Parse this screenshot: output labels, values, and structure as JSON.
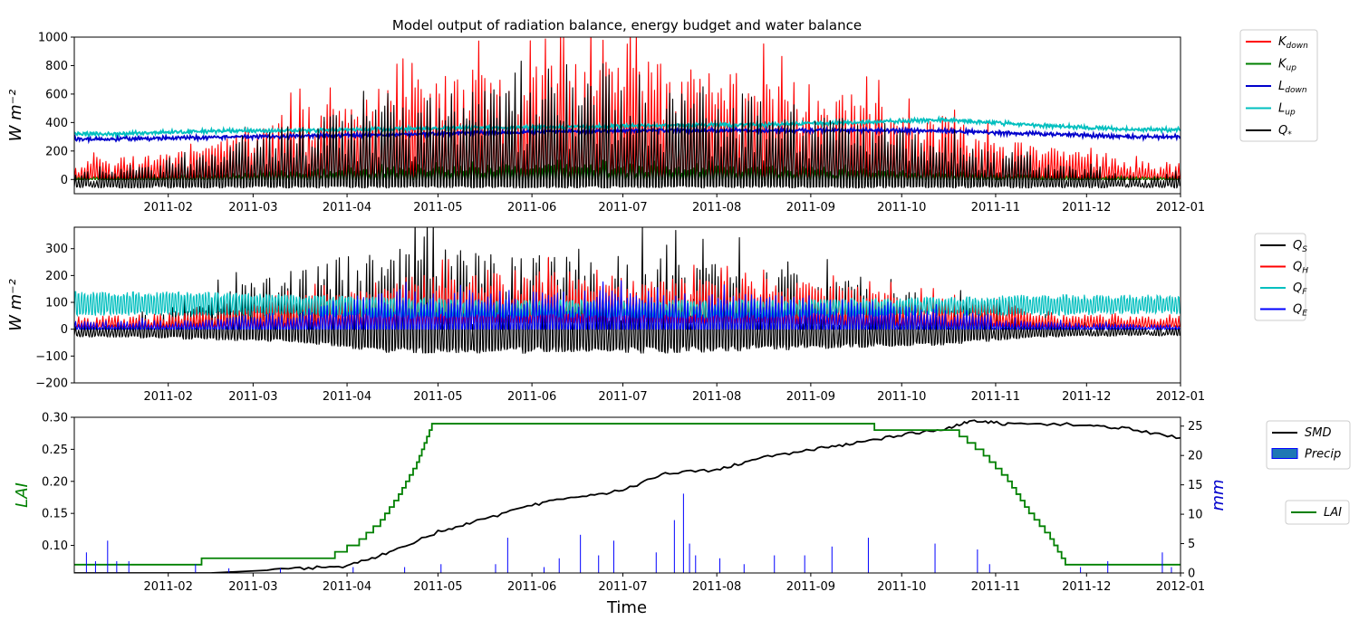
{
  "figure": {
    "title": "Model output of radiation balance, energy budget and water balance"
  },
  "chart_data": [
    {
      "type": "line",
      "id": "radiation",
      "title": "Model output of radiation balance, energy budget and water balance",
      "ylabel": "W m⁻²",
      "xlabel": "",
      "xlim": [
        "2011-01-01",
        "2012-01-01"
      ],
      "ylim": [
        -100,
        1000
      ],
      "yticks": [
        0,
        200,
        400,
        600,
        800,
        1000
      ],
      "ytick_labels": [
        "0",
        "200",
        "400",
        "600",
        "800",
        "1000"
      ],
      "xtick_labels": [
        "2011-02",
        "2011-03",
        "2011-04",
        "2011-05",
        "2011-06",
        "2011-07",
        "2011-08",
        "2011-09",
        "2011-10",
        "2011-11",
        "2011-12",
        "2012-01"
      ],
      "legend_position": "outside-right",
      "months": [
        "2011-01",
        "2011-02",
        "2011-03",
        "2011-04",
        "2011-05",
        "2011-06",
        "2011-07",
        "2011-08",
        "2011-09",
        "2011-10",
        "2011-11",
        "2011-12"
      ],
      "series": [
        {
          "name": "K_down",
          "label": "K",
          "sub": "down",
          "color": "#ff0000",
          "style": "diurnal",
          "monthly_peak": [
            150,
            240,
            500,
            680,
            780,
            850,
            820,
            770,
            600,
            450,
            240,
            130
          ],
          "monthly_min": [
            0,
            0,
            0,
            0,
            0,
            0,
            0,
            0,
            0,
            0,
            0,
            0
          ]
        },
        {
          "name": "K_up",
          "label": "K",
          "sub": "up",
          "color": "#008000",
          "style": "diurnal",
          "monthly_peak": [
            20,
            35,
            70,
            90,
            100,
            110,
            105,
            100,
            80,
            60,
            30,
            20
          ],
          "monthly_min": [
            0,
            0,
            0,
            0,
            0,
            0,
            0,
            0,
            0,
            0,
            0,
            0
          ]
        },
        {
          "name": "L_down",
          "label": "L",
          "sub": "down",
          "color": "#0000cc",
          "style": "smooth",
          "monthly_mean": [
            285,
            295,
            305,
            315,
            330,
            340,
            345,
            345,
            345,
            340,
            320,
            300
          ]
        },
        {
          "name": "L_up",
          "label": "L",
          "sub": "up",
          "color": "#00bfbf",
          "style": "smooth",
          "monthly_mean": [
            320,
            340,
            345,
            355,
            365,
            370,
            380,
            385,
            400,
            420,
            380,
            350
          ]
        },
        {
          "name": "Q*",
          "label": "Q",
          "sub": "*",
          "color": "#000000",
          "style": "diurnal",
          "monthly_peak": [
            60,
            200,
            400,
            560,
            650,
            680,
            640,
            580,
            420,
            300,
            130,
            40
          ],
          "monthly_min": [
            -60,
            -60,
            -60,
            -60,
            -60,
            -60,
            -60,
            -60,
            -60,
            -60,
            -60,
            -60
          ]
        }
      ]
    },
    {
      "type": "line",
      "id": "energy",
      "ylabel": "W m⁻²",
      "xlabel": "",
      "xlim": [
        "2011-01-01",
        "2012-01-01"
      ],
      "ylim": [
        -200,
        380
      ],
      "yticks": [
        -200,
        -100,
        0,
        100,
        200,
        300
      ],
      "ytick_labels": [
        "−200",
        "−100",
        "0",
        "100",
        "200",
        "300"
      ],
      "xtick_labels": [
        "2011-02",
        "2011-03",
        "2011-04",
        "2011-05",
        "2011-06",
        "2011-07",
        "2011-08",
        "2011-09",
        "2011-10",
        "2011-11",
        "2011-12",
        "2012-01"
      ],
      "legend_position": "outside-right",
      "series": [
        {
          "name": "Q_S",
          "label": "Q",
          "sub": "S",
          "color": "#000000",
          "style": "diurnal",
          "monthly_peak": [
            20,
            130,
            230,
            310,
            300,
            300,
            280,
            250,
            180,
            130,
            40,
            15
          ],
          "monthly_min": [
            -30,
            -40,
            -50,
            -90,
            -90,
            -90,
            -90,
            -80,
            -70,
            -60,
            -30,
            -25
          ]
        },
        {
          "name": "Q_H",
          "label": "Q",
          "sub": "H",
          "color": "#ff0000",
          "style": "diurnal",
          "monthly_peak": [
            50,
            70,
            120,
            200,
            220,
            220,
            200,
            190,
            160,
            120,
            70,
            50
          ],
          "monthly_min": [
            10,
            10,
            10,
            20,
            30,
            30,
            30,
            30,
            20,
            15,
            10,
            10
          ]
        },
        {
          "name": "Q_F",
          "label": "Q",
          "sub": "F",
          "color": "#00bfbf",
          "style": "band",
          "monthly_peak": [
            140,
            140,
            130,
            120,
            110,
            110,
            110,
            110,
            115,
            120,
            130,
            130
          ],
          "monthly_min": [
            50,
            50,
            50,
            40,
            40,
            40,
            40,
            40,
            45,
            50,
            50,
            55
          ]
        },
        {
          "name": "Q_E",
          "label": "Q",
          "sub": "E",
          "color": "#0000ff",
          "style": "diurnal",
          "monthly_peak": [
            30,
            40,
            70,
            150,
            150,
            150,
            140,
            130,
            110,
            80,
            30,
            20
          ],
          "monthly_min": [
            0,
            0,
            0,
            0,
            0,
            0,
            0,
            0,
            0,
            0,
            0,
            0
          ]
        }
      ]
    },
    {
      "type": "line",
      "id": "water",
      "ylabel": "LAI",
      "ylabel_right": "mm",
      "xlabel": "Time",
      "xlim": [
        "2011-01-01",
        "2012-01-01"
      ],
      "ylim": [
        0.057,
        0.3
      ],
      "yticks": [
        0.1,
        0.15,
        0.2,
        0.25,
        0.3
      ],
      "ytick_labels": [
        "0.10",
        "0.15",
        "0.20",
        "0.25",
        "0.30"
      ],
      "ylim_right": [
        0,
        26.5
      ],
      "yticks_right": [
        0,
        5,
        10,
        15,
        20,
        25
      ],
      "ytick_labels_right": [
        "0",
        "5",
        "10",
        "15",
        "20",
        "25"
      ],
      "xtick_labels": [
        "2011-02",
        "2011-03",
        "2011-04",
        "2011-05",
        "2011-06",
        "2011-07",
        "2011-08",
        "2011-09",
        "2011-10",
        "2011-11",
        "2011-12",
        "2012-01"
      ],
      "legend_position": "outside-right",
      "series": [
        {
          "name": "SMD",
          "label": "SMD",
          "color": "#000000",
          "axis": "right",
          "x": [
            "2011-01-01",
            "2011-02-15",
            "2011-03-15",
            "2011-04-01",
            "2011-04-15",
            "2011-05-01",
            "2011-05-15",
            "2011-06-01",
            "2011-06-15",
            "2011-07-01",
            "2011-07-15",
            "2011-08-01",
            "2011-08-15",
            "2011-09-01",
            "2011-09-15",
            "2011-10-01",
            "2011-10-15",
            "2011-10-25",
            "2011-11-05",
            "2011-12-01",
            "2011-12-15",
            "2012-01-01"
          ],
          "y": [
            0,
            0,
            0.7,
            1.2,
            3.5,
            7.0,
            9.0,
            11.5,
            13.0,
            14.0,
            17.0,
            17.5,
            19.5,
            21.0,
            22.0,
            23.5,
            24.5,
            26.0,
            25.3,
            25.3,
            24.5,
            23.0
          ]
        },
        {
          "name": "LAI",
          "label": "LAI",
          "color": "#008000",
          "axis": "left",
          "style": "step",
          "x": [
            "2011-01-01",
            "2011-02-12",
            "2011-03-28",
            "2011-04-05",
            "2011-04-12",
            "2011-04-18",
            "2011-04-24",
            "2011-04-29",
            "2011-09-22",
            "2011-10-20",
            "2011-10-28",
            "2011-11-05",
            "2011-11-12",
            "2011-11-19",
            "2011-11-24",
            "2012-01-01"
          ],
          "y": [
            0.07,
            0.08,
            0.09,
            0.11,
            0.14,
            0.18,
            0.23,
            0.29,
            0.28,
            0.27,
            0.24,
            0.2,
            0.15,
            0.11,
            0.07,
            0.07
          ]
        },
        {
          "name": "Precip",
          "label": "Precip",
          "color": "#0000ff",
          "fill": "#1f77b4",
          "axis": "right",
          "type": "bar",
          "x": [
            "2011-01-05",
            "2011-01-08",
            "2011-01-12",
            "2011-01-15",
            "2011-01-19",
            "2011-02-10",
            "2011-02-21",
            "2011-03-10",
            "2011-04-03",
            "2011-04-20",
            "2011-05-02",
            "2011-05-20",
            "2011-05-24",
            "2011-06-05",
            "2011-06-10",
            "2011-06-17",
            "2011-06-23",
            "2011-06-28",
            "2011-07-12",
            "2011-07-18",
            "2011-07-21",
            "2011-07-23",
            "2011-07-25",
            "2011-08-02",
            "2011-08-10",
            "2011-08-20",
            "2011-08-30",
            "2011-09-08",
            "2011-09-20",
            "2011-10-12",
            "2011-10-26",
            "2011-10-30",
            "2011-11-29",
            "2011-12-08",
            "2011-12-26",
            "2011-12-29"
          ],
          "y": [
            3.5,
            2.0,
            5.5,
            2.0,
            2.0,
            1.5,
            0.8,
            0.8,
            1.0,
            1.0,
            1.5,
            1.5,
            6.0,
            1.0,
            2.5,
            6.5,
            3.0,
            5.5,
            3.5,
            9.0,
            13.5,
            5.0,
            3.0,
            2.5,
            1.5,
            3.0,
            3.0,
            4.5,
            6.0,
            5.0,
            4.0,
            1.5,
            1.0,
            2.0,
            3.5,
            1.0
          ]
        }
      ]
    }
  ]
}
